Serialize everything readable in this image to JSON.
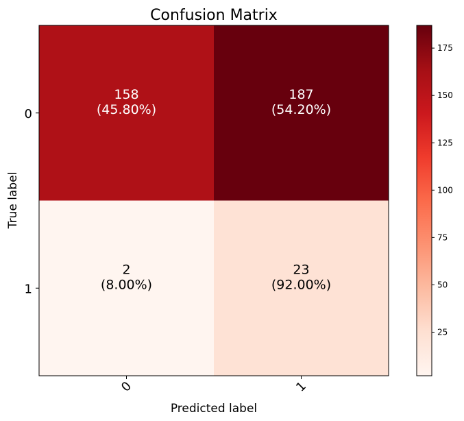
{
  "chart_data": {
    "type": "heatmap",
    "title": "Confusion Matrix",
    "xlabel": "Predicted label",
    "ylabel": "True label",
    "x_categories": [
      "0",
      "1"
    ],
    "y_categories": [
      "0",
      "1"
    ],
    "values": [
      [
        158,
        187
      ],
      [
        2,
        23
      ]
    ],
    "cell_labels": [
      [
        "158",
        "187"
      ],
      [
        "2",
        "23"
      ]
    ],
    "cell_percent_labels": [
      [
        "(45.80%)",
        "(54.20%)"
      ],
      [
        "(8.00%)",
        "(92.00%)"
      ]
    ],
    "colormap": "Reds",
    "colorbar": {
      "ticks": [
        25,
        50,
        75,
        100,
        125,
        150,
        175
      ],
      "tick_labels": [
        "25",
        "50",
        "75",
        "100",
        "125",
        "150",
        "175"
      ],
      "range": [
        2,
        187
      ]
    },
    "x_tick_rotation": "45 degrees",
    "grid": false
  }
}
